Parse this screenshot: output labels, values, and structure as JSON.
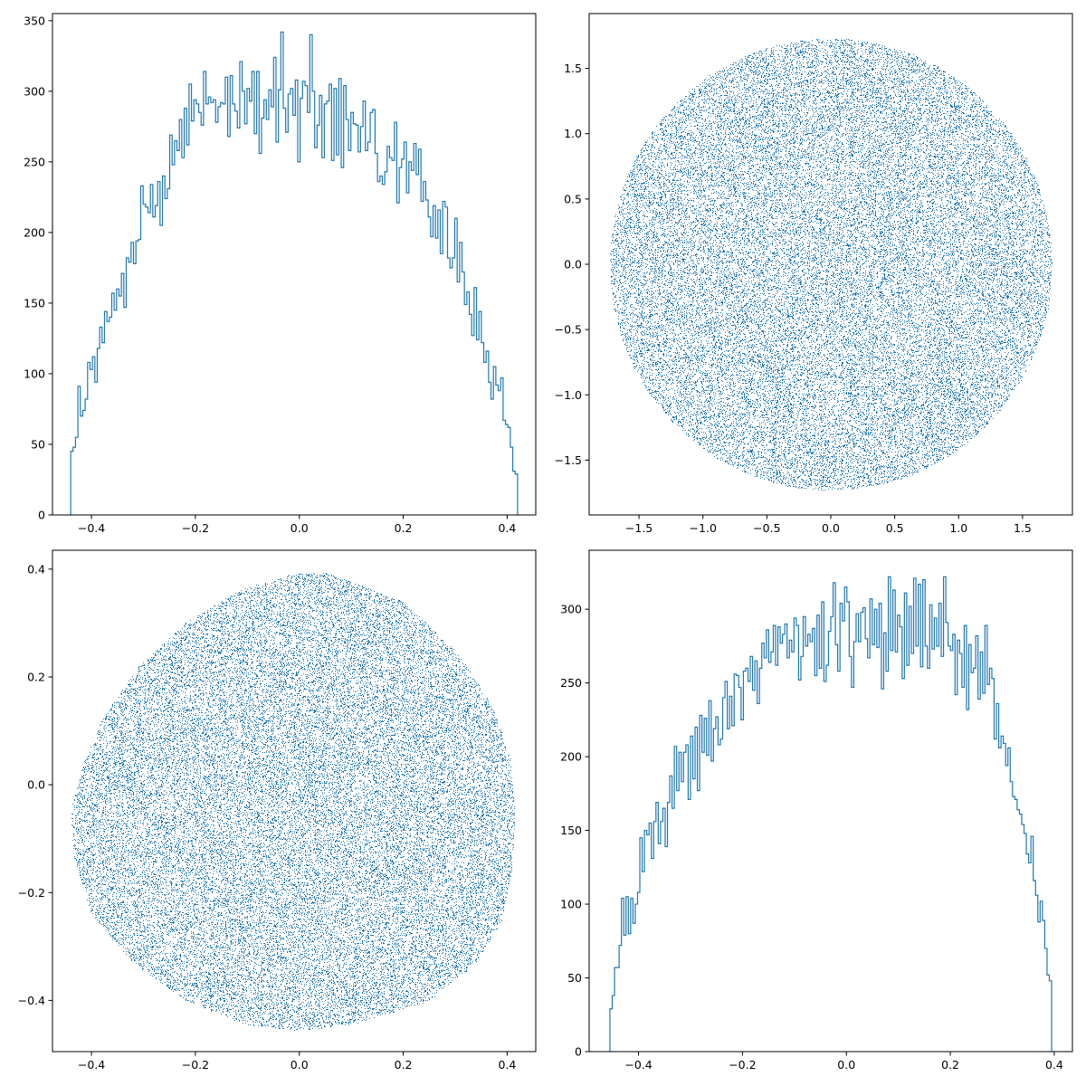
{
  "colors": {
    "series": "#1f77b4",
    "axes": "#000000",
    "background": "#ffffff"
  },
  "chart_data": [
    {
      "type": "histogram-step",
      "title": "",
      "xlabel": "",
      "ylabel": "",
      "xlim": [
        -0.475,
        0.455
      ],
      "ylim": [
        0,
        355
      ],
      "grid": false,
      "xticks": [
        -0.4,
        -0.2,
        0.0,
        0.2,
        0.4
      ],
      "xtick_labels": [
        "−0.4",
        "−0.2",
        "0.0",
        "0.2",
        "0.4"
      ],
      "yticks": [
        0,
        50,
        100,
        150,
        200,
        250,
        300,
        350
      ],
      "ytick_labels": [
        "0",
        "50",
        "100",
        "150",
        "200",
        "250",
        "300",
        "350"
      ],
      "bin_range": [
        -0.44,
        0.42
      ],
      "counts": [
        45,
        48,
        55,
        91,
        70,
        74,
        82,
        108,
        103,
        112,
        94,
        118,
        133,
        122,
        144,
        137,
        140,
        157,
        145,
        160,
        155,
        171,
        147,
        182,
        179,
        193,
        178,
        194,
        195,
        233,
        220,
        218,
        214,
        234,
        211,
        219,
        236,
        205,
        240,
        224,
        231,
        269,
        248,
        265,
        258,
        280,
        253,
        288,
        262,
        305,
        279,
        294,
        291,
        285,
        276,
        314,
        291,
        296,
        292,
        294,
        278,
        289,
        292,
        291,
        310,
        268,
        311,
        291,
        286,
        274,
        321,
        300,
        277,
        302,
        293,
        314,
        270,
        314,
        256,
        281,
        294,
        280,
        301,
        289,
        324,
        264,
        301,
        342,
        288,
        271,
        298,
        302,
        283,
        308,
        250,
        295,
        307,
        304,
        285,
        340,
        300,
        260,
        276,
        297,
        253,
        291,
        293,
        305,
        251,
        302,
        255,
        309,
        246,
        304,
        280,
        258,
        285,
        277,
        276,
        257,
        275,
        293,
        258,
        264,
        285,
        287,
        256,
        236,
        240,
        234,
        243,
        261,
        253,
        251,
        278,
        221,
        246,
        252,
        264,
        228,
        250,
        244,
        263,
        241,
        259,
        222,
        236,
        223,
        211,
        197,
        219,
        196,
        216,
        185,
        222,
        218,
        182,
        175,
        182,
        210,
        165,
        193,
        172,
        149,
        158,
        142,
        127,
        161,
        124,
        144,
        122,
        108,
        116,
        94,
        82,
        105,
        92,
        88,
        97,
        67,
        64,
        62,
        48,
        31,
        29
      ]
    },
    {
      "type": "scatter",
      "title": "",
      "xlabel": "",
      "ylabel": "",
      "xlim": [
        -1.89,
        1.89
      ],
      "ylim": [
        -1.92,
        1.92
      ],
      "grid": false,
      "xticks": [
        -1.5,
        -1.0,
        -0.5,
        0.0,
        0.5,
        1.0,
        1.5
      ],
      "xtick_labels": [
        "−1.5",
        "−1.0",
        "−0.5",
        "0.0",
        "0.5",
        "1.0",
        "1.5"
      ],
      "yticks": [
        -1.5,
        -1.0,
        -0.5,
        0.0,
        0.5,
        1.0,
        1.5
      ],
      "ytick_labels": [
        "−1.5",
        "−1.0",
        "−0.5",
        "0.0",
        "0.5",
        "1.0",
        "1.5"
      ],
      "marker": "pixel",
      "region": {
        "shape": "disk",
        "center": [
          0.0,
          0.0
        ],
        "radius": 1.73
      },
      "point_count": 40000
    },
    {
      "type": "scatter",
      "title": "",
      "xlabel": "",
      "ylabel": "",
      "xlim": [
        -0.475,
        0.455
      ],
      "ylim": [
        -0.495,
        0.435
      ],
      "grid": false,
      "xticks": [
        -0.4,
        -0.2,
        0.0,
        0.2,
        0.4
      ],
      "xtick_labels": [
        "−0.4",
        "−0.2",
        "0.0",
        "0.2",
        "0.4"
      ],
      "yticks": [
        -0.4,
        -0.2,
        0.0,
        0.2,
        0.4
      ],
      "ytick_labels": [
        "−0.4",
        "−0.2",
        "0.0",
        "0.2",
        "0.4"
      ],
      "marker": "pixel",
      "region": {
        "shape": "polygon",
        "vertices": [
          [
            0.05,
            0.395
          ],
          [
            0.2,
            0.34
          ],
          [
            0.3,
            0.25
          ],
          [
            0.37,
            0.15
          ],
          [
            0.405,
            0.05
          ],
          [
            0.415,
            -0.05
          ],
          [
            0.41,
            -0.15
          ],
          [
            0.39,
            -0.25
          ],
          [
            0.34,
            -0.33
          ],
          [
            0.25,
            -0.4
          ],
          [
            0.1,
            -0.445
          ],
          [
            0.0,
            -0.455
          ],
          [
            -0.1,
            -0.445
          ],
          [
            -0.22,
            -0.4
          ],
          [
            -0.32,
            -0.33
          ],
          [
            -0.4,
            -0.24
          ],
          [
            -0.435,
            -0.13
          ],
          [
            -0.44,
            -0.05
          ],
          [
            -0.42,
            0.03
          ],
          [
            -0.38,
            0.12
          ],
          [
            -0.31,
            0.22
          ],
          [
            -0.22,
            0.3
          ],
          [
            -0.12,
            0.36
          ],
          [
            -0.02,
            0.39
          ]
        ]
      },
      "point_count": 40000
    },
    {
      "type": "histogram-step",
      "title": "",
      "xlabel": "",
      "ylabel": "",
      "xlim": [
        -0.495,
        0.435
      ],
      "ylim": [
        0,
        340
      ],
      "grid": false,
      "xticks": [
        -0.4,
        -0.2,
        0.0,
        0.2,
        0.4
      ],
      "xtick_labels": [
        "−0.4",
        "−0.2",
        "0.0",
        "0.2",
        "0.4"
      ],
      "yticks": [
        0,
        50,
        100,
        150,
        200,
        250,
        300
      ],
      "ytick_labels": [
        "0",
        "50",
        "100",
        "150",
        "200",
        "250",
        "300"
      ],
      "bin_range": [
        -0.455,
        0.395
      ],
      "counts": [
        29,
        38,
        57,
        57,
        72,
        104,
        79,
        105,
        80,
        104,
        87,
        100,
        108,
        145,
        122,
        150,
        147,
        155,
        131,
        156,
        169,
        141,
        156,
        165,
        139,
        169,
        187,
        165,
        207,
        177,
        203,
        183,
        203,
        208,
        171,
        214,
        185,
        220,
        177,
        228,
        203,
        226,
        201,
        238,
        197,
        219,
        227,
        208,
        212,
        240,
        251,
        219,
        241,
        221,
        256,
        255,
        247,
        225,
        258,
        260,
        251,
        268,
        245,
        265,
        236,
        260,
        277,
        267,
        286,
        264,
        271,
        289,
        262,
        288,
        277,
        283,
        290,
        267,
        279,
        271,
        294,
        289,
        252,
        268,
        295,
        275,
        283,
        278,
        287,
        255,
        296,
        260,
        305,
        251,
        262,
        285,
        295,
        318,
        276,
        258,
        304,
        292,
        315,
        305,
        268,
        247,
        278,
        297,
        278,
        298,
        301,
        280,
        267,
        307,
        276,
        300,
        274,
        304,
        246,
        284,
        258,
        322,
        272,
        313,
        271,
        296,
        288,
        253,
        311,
        262,
        302,
        270,
        321,
        275,
        317,
        261,
        320,
        275,
        260,
        303,
        273,
        294,
        275,
        304,
        268,
        322,
        291,
        275,
        272,
        283,
        242,
        279,
        270,
        247,
        289,
        232,
        276,
        257,
        260,
        282,
        239,
        271,
        243,
        289,
        249,
        260,
        253,
        212,
        236,
        206,
        214,
        209,
        194,
        206,
        183,
        173,
        171,
        164,
        161,
        154,
        148,
        134,
        128,
        146,
        116,
        106,
        88,
        102,
        89,
        70,
        52,
        48
      ]
    }
  ]
}
